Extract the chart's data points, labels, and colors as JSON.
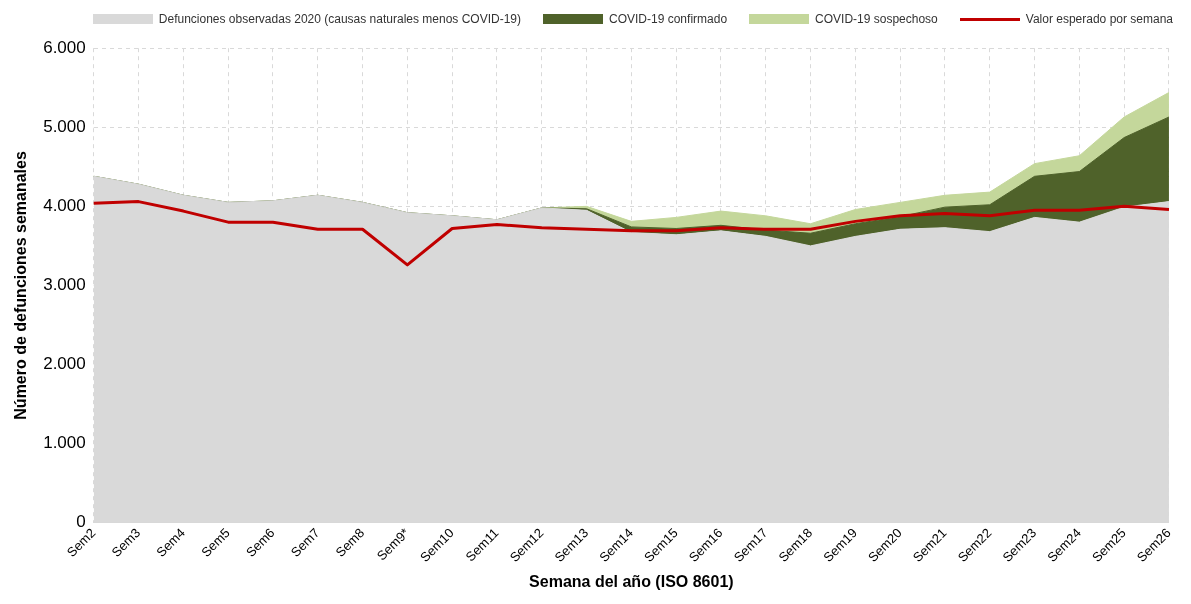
{
  "chart_data": {
    "type": "area",
    "xlabel": "Semana del año (ISO 8601)",
    "ylabel": "Número de defunciones semanales",
    "categories": [
      "Sem2",
      "Sem3",
      "Sem4",
      "Sem5",
      "Sem6",
      "Sem7",
      "Sem8",
      "Sem9*",
      "Sem10",
      "Sem11",
      "Sem12",
      "Sem13",
      "Sem14",
      "Sem15",
      "Sem16",
      "Sem17",
      "Sem18",
      "Sem19",
      "Sem20",
      "Sem21",
      "Sem22",
      "Sem23",
      "Sem24",
      "Sem25",
      "Sem26"
    ],
    "series": [
      {
        "name": "Defunciones observadas 2020 (causas naturales menos COVID-19)",
        "type": "area",
        "color": "#d9d9d9",
        "values": [
          4380,
          4280,
          4140,
          4050,
          4070,
          4140,
          4050,
          3920,
          3880,
          3830,
          3980,
          3950,
          3670,
          3640,
          3690,
          3620,
          3500,
          3620,
          3710,
          3730,
          3680,
          3860,
          3800,
          3990,
          4060
        ]
      },
      {
        "name": "COVID-19 confirmado",
        "type": "area",
        "color": "#4f622a",
        "values": [
          0,
          0,
          0,
          0,
          0,
          0,
          0,
          0,
          0,
          0,
          0,
          20,
          70,
          80,
          70,
          80,
          160,
          160,
          160,
          260,
          340,
          520,
          640,
          880,
          1070
        ]
      },
      {
        "name": "COVID-19 sospechoso",
        "type": "area",
        "color": "#c4d79b",
        "values": [
          0,
          0,
          0,
          0,
          0,
          0,
          0,
          0,
          0,
          0,
          0,
          30,
          70,
          140,
          180,
          180,
          120,
          180,
          180,
          150,
          160,
          160,
          200,
          260,
          310
        ]
      },
      {
        "name": "Valor esperado por semana",
        "type": "line",
        "color": "#c00000",
        "values": [
          4040,
          4060,
          3940,
          3800,
          3800,
          3710,
          3710,
          3260,
          3720,
          3770,
          3730,
          3710,
          3690,
          3690,
          3730,
          3710,
          3710,
          3810,
          3880,
          3910,
          3880,
          3950,
          3950,
          4000,
          3960
        ]
      }
    ],
    "stacked": true,
    "marker": "none",
    "grid": true,
    "legend": "top",
    "ylim": [
      0,
      6000
    ],
    "yticks": [
      {
        "value": 0,
        "label": "0"
      },
      {
        "value": 1000,
        "label": "1.000"
      },
      {
        "value": 2000,
        "label": "2.000"
      },
      {
        "value": 3000,
        "label": "3.000"
      },
      {
        "value": 4000,
        "label": "4.000"
      },
      {
        "value": 5000,
        "label": "5.000"
      },
      {
        "value": 6000,
        "label": "6.000"
      }
    ]
  }
}
